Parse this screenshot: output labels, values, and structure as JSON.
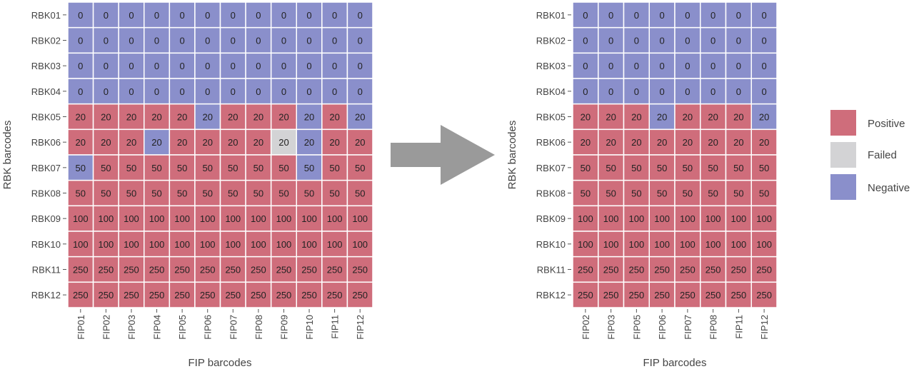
{
  "chart_data": [
    {
      "type": "heatmap",
      "xlabel": "FIP barcodes",
      "ylabel": "RBK barcodes",
      "x_categories": [
        "FIP01",
        "FIP02",
        "FIP03",
        "FIP04",
        "FIP05",
        "FIP06",
        "FIP07",
        "FIP08",
        "FIP09",
        "FIP10",
        "FIP11",
        "FIP12"
      ],
      "y_categories": [
        "RBK01",
        "RBK02",
        "RBK03",
        "RBK04",
        "RBK05",
        "RBK06",
        "RBK07",
        "RBK08",
        "RBK09",
        "RBK10",
        "RBK11",
        "RBK12"
      ],
      "values": [
        [
          0,
          0,
          0,
          0,
          0,
          0,
          0,
          0,
          0,
          0,
          0,
          0
        ],
        [
          0,
          0,
          0,
          0,
          0,
          0,
          0,
          0,
          0,
          0,
          0,
          0
        ],
        [
          0,
          0,
          0,
          0,
          0,
          0,
          0,
          0,
          0,
          0,
          0,
          0
        ],
        [
          0,
          0,
          0,
          0,
          0,
          0,
          0,
          0,
          0,
          0,
          0,
          0
        ],
        [
          20,
          20,
          20,
          20,
          20,
          20,
          20,
          20,
          20,
          20,
          20,
          20
        ],
        [
          20,
          20,
          20,
          20,
          20,
          20,
          20,
          20,
          20,
          20,
          20,
          20
        ],
        [
          50,
          50,
          50,
          50,
          50,
          50,
          50,
          50,
          50,
          50,
          50,
          50
        ],
        [
          50,
          50,
          50,
          50,
          50,
          50,
          50,
          50,
          50,
          50,
          50,
          50
        ],
        [
          100,
          100,
          100,
          100,
          100,
          100,
          100,
          100,
          100,
          100,
          100,
          100
        ],
        [
          100,
          100,
          100,
          100,
          100,
          100,
          100,
          100,
          100,
          100,
          100,
          100
        ],
        [
          250,
          250,
          250,
          250,
          250,
          250,
          250,
          250,
          250,
          250,
          250,
          250
        ],
        [
          250,
          250,
          250,
          250,
          250,
          250,
          250,
          250,
          250,
          250,
          250,
          250
        ]
      ],
      "status": [
        [
          "N",
          "N",
          "N",
          "N",
          "N",
          "N",
          "N",
          "N",
          "N",
          "N",
          "N",
          "N"
        ],
        [
          "N",
          "N",
          "N",
          "N",
          "N",
          "N",
          "N",
          "N",
          "N",
          "N",
          "N",
          "N"
        ],
        [
          "N",
          "N",
          "N",
          "N",
          "N",
          "N",
          "N",
          "N",
          "N",
          "N",
          "N",
          "N"
        ],
        [
          "N",
          "N",
          "N",
          "N",
          "N",
          "N",
          "N",
          "N",
          "N",
          "N",
          "N",
          "N"
        ],
        [
          "P",
          "P",
          "P",
          "P",
          "P",
          "N",
          "P",
          "P",
          "P",
          "N",
          "P",
          "N"
        ],
        [
          "P",
          "P",
          "P",
          "N",
          "P",
          "P",
          "P",
          "P",
          "F",
          "N",
          "P",
          "P"
        ],
        [
          "N",
          "P",
          "P",
          "P",
          "P",
          "P",
          "P",
          "P",
          "P",
          "N",
          "P",
          "P"
        ],
        [
          "P",
          "P",
          "P",
          "P",
          "P",
          "P",
          "P",
          "P",
          "P",
          "P",
          "P",
          "P"
        ],
        [
          "P",
          "P",
          "P",
          "P",
          "P",
          "P",
          "P",
          "P",
          "P",
          "P",
          "P",
          "P"
        ],
        [
          "P",
          "P",
          "P",
          "P",
          "P",
          "P",
          "P",
          "P",
          "P",
          "P",
          "P",
          "P"
        ],
        [
          "P",
          "P",
          "P",
          "P",
          "P",
          "P",
          "P",
          "P",
          "P",
          "P",
          "P",
          "P"
        ],
        [
          "P",
          "P",
          "P",
          "P",
          "P",
          "P",
          "P",
          "P",
          "P",
          "P",
          "P",
          "P"
        ]
      ]
    },
    {
      "type": "heatmap",
      "xlabel": "FIP barcodes",
      "ylabel": "RBK barcodes",
      "x_categories": [
        "FIP02",
        "FIP03",
        "FIP05",
        "FIP06",
        "FIP07",
        "FIP08",
        "FIP11",
        "FIP12"
      ],
      "y_categories": [
        "RBK01",
        "RBK02",
        "RBK03",
        "RBK04",
        "RBK05",
        "RBK06",
        "RBK07",
        "RBK08",
        "RBK09",
        "RBK10",
        "RBK11",
        "RBK12"
      ],
      "values": [
        [
          0,
          0,
          0,
          0,
          0,
          0,
          0,
          0
        ],
        [
          0,
          0,
          0,
          0,
          0,
          0,
          0,
          0
        ],
        [
          0,
          0,
          0,
          0,
          0,
          0,
          0,
          0
        ],
        [
          0,
          0,
          0,
          0,
          0,
          0,
          0,
          0
        ],
        [
          20,
          20,
          20,
          20,
          20,
          20,
          20,
          20
        ],
        [
          20,
          20,
          20,
          20,
          20,
          20,
          20,
          20
        ],
        [
          50,
          50,
          50,
          50,
          50,
          50,
          50,
          50
        ],
        [
          50,
          50,
          50,
          50,
          50,
          50,
          50,
          50
        ],
        [
          100,
          100,
          100,
          100,
          100,
          100,
          100,
          100
        ],
        [
          100,
          100,
          100,
          100,
          100,
          100,
          100,
          100
        ],
        [
          250,
          250,
          250,
          250,
          250,
          250,
          250,
          250
        ],
        [
          250,
          250,
          250,
          250,
          250,
          250,
          250,
          250
        ]
      ],
      "status": [
        [
          "N",
          "N",
          "N",
          "N",
          "N",
          "N",
          "N",
          "N"
        ],
        [
          "N",
          "N",
          "N",
          "N",
          "N",
          "N",
          "N",
          "N"
        ],
        [
          "N",
          "N",
          "N",
          "N",
          "N",
          "N",
          "N",
          "N"
        ],
        [
          "N",
          "N",
          "N",
          "N",
          "N",
          "N",
          "N",
          "N"
        ],
        [
          "P",
          "P",
          "P",
          "N",
          "P",
          "P",
          "P",
          "N"
        ],
        [
          "P",
          "P",
          "P",
          "P",
          "P",
          "P",
          "P",
          "P"
        ],
        [
          "P",
          "P",
          "P",
          "P",
          "P",
          "P",
          "P",
          "P"
        ],
        [
          "P",
          "P",
          "P",
          "P",
          "P",
          "P",
          "P",
          "P"
        ],
        [
          "P",
          "P",
          "P",
          "P",
          "P",
          "P",
          "P",
          "P"
        ],
        [
          "P",
          "P",
          "P",
          "P",
          "P",
          "P",
          "P",
          "P"
        ],
        [
          "P",
          "P",
          "P",
          "P",
          "P",
          "P",
          "P",
          "P"
        ],
        [
          "P",
          "P",
          "P",
          "P",
          "P",
          "P",
          "P",
          "P"
        ]
      ]
    }
  ],
  "legend": {
    "placement": "right",
    "items": [
      {
        "key": "P",
        "label": "Positive",
        "color": "#cf6d7b"
      },
      {
        "key": "F",
        "label": "Failed",
        "color": "#d3d3d5"
      },
      {
        "key": "N",
        "label": "Negative",
        "color": "#8a8fcb"
      }
    ]
  },
  "arrow_color": "#9a9a9a"
}
